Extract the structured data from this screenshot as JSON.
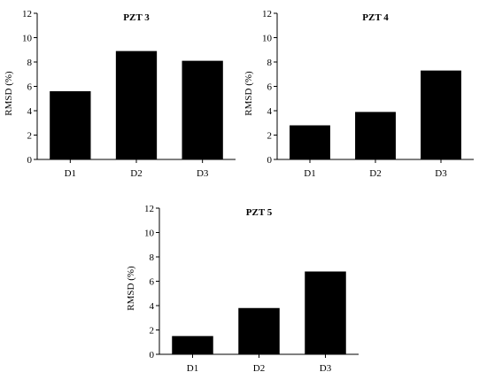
{
  "chart_data": [
    {
      "type": "bar",
      "title": "PZT 3",
      "ylabel": "RMSD (%)",
      "xlabel": "",
      "categories": [
        "D1",
        "D2",
        "D3"
      ],
      "values": [
        5.6,
        8.9,
        8.1
      ],
      "ylim": [
        0,
        12
      ],
      "yticks": [
        0,
        2,
        4,
        6,
        8,
        10,
        12
      ],
      "bar_color": "#000000",
      "grid": false
    },
    {
      "type": "bar",
      "title": "PZT 4",
      "ylabel": "RMSD (%)",
      "xlabel": "",
      "categories": [
        "D1",
        "D2",
        "D3"
      ],
      "values": [
        2.8,
        3.9,
        7.3
      ],
      "ylim": [
        0,
        12
      ],
      "yticks": [
        0,
        2,
        4,
        6,
        8,
        10,
        12
      ],
      "bar_color": "#000000",
      "grid": false
    },
    {
      "type": "bar",
      "title": "PZT 5",
      "ylabel": "RMSD (%)",
      "xlabel": "",
      "categories": [
        "D1",
        "D2",
        "D3"
      ],
      "values": [
        1.5,
        3.8,
        6.8
      ],
      "ylim": [
        0,
        12
      ],
      "yticks": [
        0,
        2,
        4,
        6,
        8,
        10,
        12
      ],
      "bar_color": "#000000",
      "grid": false
    }
  ]
}
